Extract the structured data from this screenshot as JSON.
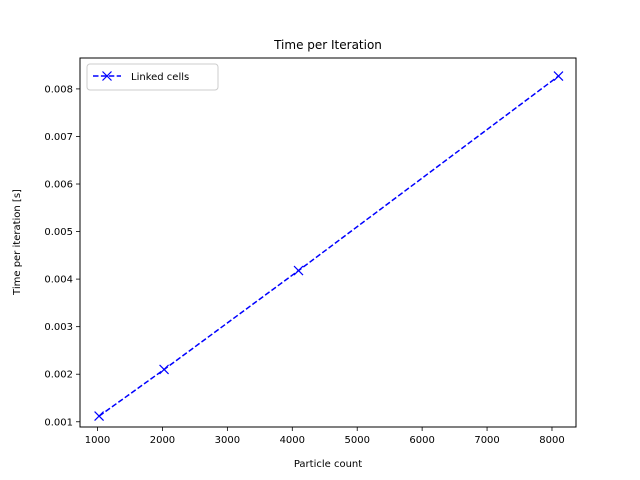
{
  "chart_data": {
    "type": "line",
    "title": "Time per Iteration",
    "xlabel": "Particle count",
    "ylabel": "Time per iteration [s]",
    "xlim": [
      730,
      8370
    ],
    "ylim": [
      0.00089,
      0.00865
    ],
    "xticks": [
      1000,
      2000,
      3000,
      4000,
      5000,
      6000,
      7000,
      8000
    ],
    "xtick_labels": [
      "1000",
      "2000",
      "3000",
      "4000",
      "5000",
      "6000",
      "7000",
      "8000"
    ],
    "yticks": [
      0.001,
      0.002,
      0.003,
      0.004,
      0.005,
      0.006,
      0.007,
      0.008
    ],
    "ytick_labels": [
      "0.001",
      "0.002",
      "0.003",
      "0.004",
      "0.005",
      "0.006",
      "0.007",
      "0.008"
    ],
    "grid": false,
    "legend_position": "top-left",
    "series": [
      {
        "name": "Linked cells",
        "color": "#0000ff",
        "line_style": "dashed",
        "marker": "x",
        "x": [
          1024,
          2025,
          4096,
          8100
        ],
        "y": [
          0.00112,
          0.0021,
          0.00418,
          0.00827
        ]
      }
    ]
  }
}
